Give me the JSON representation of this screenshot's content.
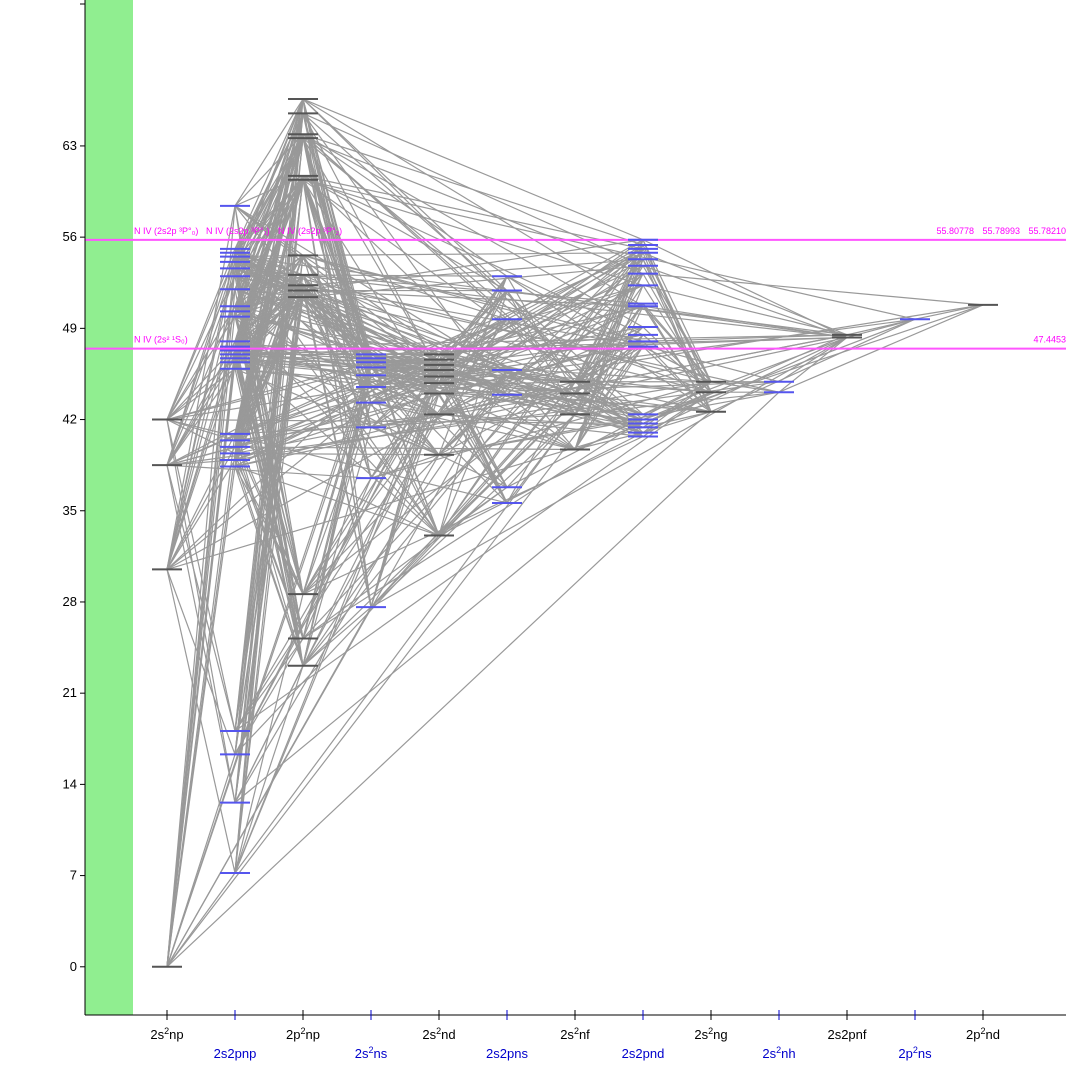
{
  "chart_data": {
    "type": "diagram",
    "y_axis": {
      "range": [
        -3.7,
        74.2
      ],
      "ticks": [
        0,
        7,
        14,
        21,
        28,
        35,
        42,
        49,
        56,
        63
      ]
    },
    "colors": {
      "axis": "#000000",
      "band": "#90ee90",
      "transition": "#999999",
      "level_even": "#555555",
      "level_odd": "#5555ee",
      "label_even": "#000000",
      "label_odd": "#0000cc",
      "limit": "#ff55ff",
      "limit_text": "#ff00ff"
    },
    "columns": [
      {
        "name": "2s2np",
        "parity": "even",
        "levels": [
          0,
          30.5,
          38.5,
          42.0
        ]
      },
      {
        "name": "2s2pnp",
        "parity": "odd",
        "levels": [
          7.2,
          12.6,
          16.3,
          18.1,
          38.4,
          38.9,
          39.4,
          39.9,
          40.4,
          40.9,
          45.9,
          46.4,
          46.7,
          47.0,
          47.3,
          47.6,
          48.0,
          49.9,
          50.3,
          50.7,
          52.0,
          53.0,
          53.6,
          54.1,
          54.5,
          54.8,
          55.1,
          58.4
        ]
      },
      {
        "name": "2p2np",
        "parity": "even",
        "levels": [
          23.1,
          25.2,
          28.6,
          51.4,
          51.9,
          52.3,
          53.1,
          54.6,
          60.4,
          60.7,
          63.6,
          63.9,
          65.5,
          66.6
        ]
      },
      {
        "name": "2s2ns",
        "parity": "odd",
        "levels": [
          27.6,
          37.5,
          41.4,
          43.3,
          44.5,
          45.4,
          46.0,
          46.4,
          46.7,
          47.0
        ]
      },
      {
        "name": "2s2nd",
        "parity": "even",
        "levels": [
          33.1,
          39.3,
          42.4,
          44.0,
          44.8,
          45.3,
          45.8,
          46.2,
          46.6,
          47.0
        ]
      },
      {
        "name": "2s2pns",
        "parity": "odd",
        "levels": [
          35.6,
          36.8,
          43.9,
          45.8,
          49.7,
          51.9,
          53.0
        ]
      },
      {
        "name": "2s2nf",
        "parity": "even",
        "levels": [
          39.7,
          42.4,
          44.0,
          44.9
        ]
      },
      {
        "name": "2s2pnd",
        "parity": "odd",
        "levels": [
          40.7,
          41.0,
          41.4,
          41.7,
          42.0,
          42.4,
          47.6,
          48.0,
          48.5,
          49.1,
          50.7,
          50.9,
          52.3,
          53.2,
          53.8,
          54.3,
          54.8,
          55.1,
          55.4,
          55.8
        ]
      },
      {
        "name": "2s2ng",
        "parity": "even",
        "levels": [
          42.6,
          44.1,
          44.9
        ]
      },
      {
        "name": "2s2nh",
        "parity": "odd",
        "levels": [
          44.1,
          44.9
        ]
      },
      {
        "name": "2s2pnf",
        "parity": "even",
        "levels": [
          48.3,
          48.5
        ]
      },
      {
        "name": "2p2ns",
        "parity": "odd",
        "levels": [
          49.7
        ]
      },
      {
        "name": "2p2nd",
        "parity": "even",
        "levels": [
          50.8
        ]
      }
    ],
    "ionization_limits": [
      {
        "value": 55.79,
        "labels": [
          "N IV (2s2p ³P°₀)",
          "N IV (2s2p ³P°₁)",
          "N IV (2s2p ³P°₂)"
        ],
        "values_text": [
          "55.80778",
          "55.78993",
          "55.78210"
        ]
      },
      {
        "value": 47.4453,
        "labels": [
          "N IV (2s² ¹S₀)"
        ],
        "values_text": [
          "47.4453"
        ]
      }
    ],
    "x_labels": [
      {
        "base": "2s",
        "sup": "2",
        "tail": "np"
      },
      {
        "base": "2s2pnp",
        "sup": "",
        "tail": ""
      },
      {
        "base": "2p",
        "sup": "2",
        "tail": "np"
      },
      {
        "base": "2s",
        "sup": "2",
        "tail": "ns"
      },
      {
        "base": "2s",
        "sup": "2",
        "tail": "nd"
      },
      {
        "base": "2s2pns",
        "sup": "",
        "tail": ""
      },
      {
        "base": "2s",
        "sup": "2",
        "tail": "nf"
      },
      {
        "base": "2s2pnd",
        "sup": "",
        "tail": ""
      },
      {
        "base": "2s",
        "sup": "2",
        "tail": "ng"
      },
      {
        "base": "2s",
        "sup": "2",
        "tail": "nh"
      },
      {
        "base": "2s2pnf",
        "sup": "",
        "tail": ""
      },
      {
        "base": "2p",
        "sup": "2",
        "tail": "ns"
      },
      {
        "base": "2p",
        "sup": "2",
        "tail": "nd"
      }
    ]
  }
}
